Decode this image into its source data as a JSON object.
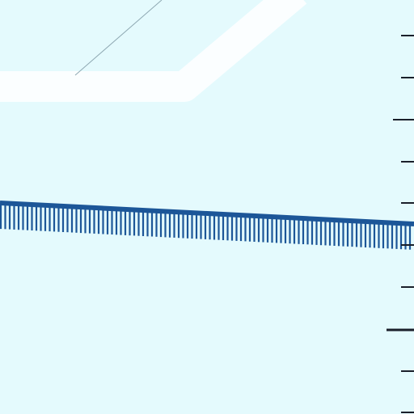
{
  "map": {
    "background_color": "#e4fafd",
    "road_color": "#fbfeff",
    "railway_color": "#1c5698",
    "thin_line_color": "#8fa9b3",
    "scale_tick_color": "#1a1f2a",
    "features": [
      {
        "name": "road",
        "type": "road"
      },
      {
        "name": "railway",
        "type": "railway"
      },
      {
        "name": "thin-line",
        "type": "path"
      },
      {
        "name": "scale-ticks",
        "type": "scale-bar"
      }
    ]
  }
}
